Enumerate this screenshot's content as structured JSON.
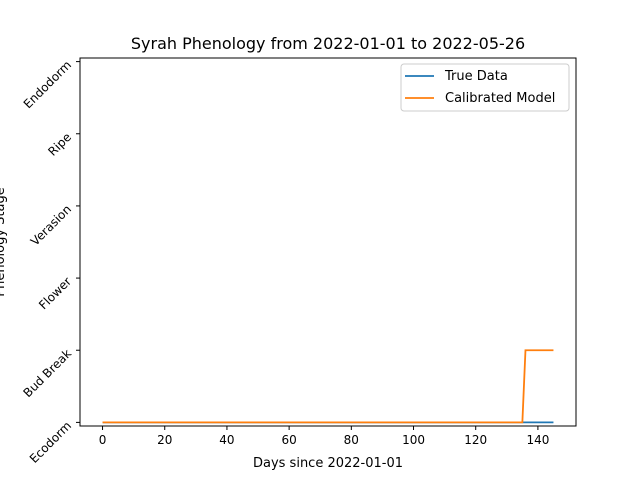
{
  "chart_data": {
    "type": "line",
    "title": "Syrah Phenology from 2022-01-01 to 2022-05-26",
    "xlabel": "Days since 2022-01-01",
    "ylabel": "Phenology Stage",
    "xlim": [
      -7.25,
      152.25
    ],
    "ylim": [
      -0.05,
      5.05
    ],
    "x_ticks": [
      0,
      20,
      40,
      60,
      80,
      100,
      120,
      140
    ],
    "y_ticks": [
      {
        "value": 0,
        "label": "Ecodorm"
      },
      {
        "value": 1,
        "label": "Bud Break"
      },
      {
        "value": 2,
        "label": "Flower"
      },
      {
        "value": 3,
        "label": "Verasion"
      },
      {
        "value": 4,
        "label": "Ripe"
      },
      {
        "value": 5,
        "label": "Endodorm"
      }
    ],
    "grid": false,
    "legend": "top-right",
    "series": [
      {
        "name": "True Data",
        "color": "#1f77b4",
        "points": [
          [
            0,
            0
          ],
          [
            145,
            0
          ]
        ]
      },
      {
        "name": "Calibrated Model",
        "color": "#ff7f0e",
        "points": [
          [
            0,
            0
          ],
          [
            135,
            0
          ],
          [
            136,
            1
          ],
          [
            145,
            1
          ]
        ]
      }
    ]
  }
}
